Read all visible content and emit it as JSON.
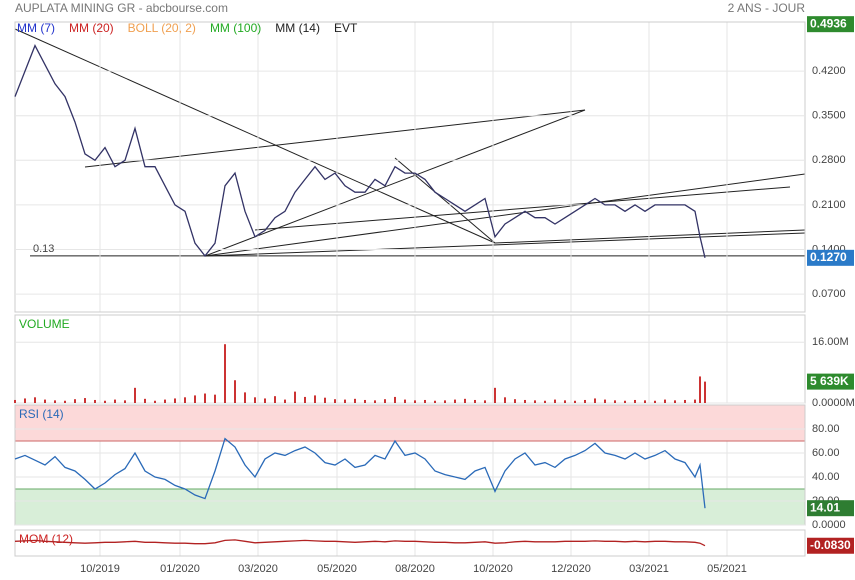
{
  "chart_data": {
    "title": "AUPLATA MINING GR - abcbourse.com",
    "subtitle": "2 ANS - JOUR",
    "xlim": [
      0,
      790
    ],
    "xticks": [
      {
        "value": 85,
        "label": "10/2019"
      },
      {
        "value": 165,
        "label": "01/2020"
      },
      {
        "value": 243,
        "label": "03/2020"
      },
      {
        "value": 322,
        "label": "05/2020"
      },
      {
        "value": 400,
        "label": "08/2020"
      },
      {
        "value": 478,
        "label": "10/2020"
      },
      {
        "value": 556,
        "label": "12/2020"
      },
      {
        "value": 634,
        "label": "03/2021"
      },
      {
        "value": 712,
        "label": "05/2021"
      }
    ],
    "x": [
      0,
      10,
      20,
      30,
      40,
      50,
      60,
      70,
      80,
      90,
      100,
      110,
      120,
      130,
      140,
      150,
      160,
      170,
      180,
      190,
      200,
      210,
      220,
      230,
      240,
      250,
      260,
      270,
      280,
      290,
      300,
      310,
      320,
      330,
      340,
      350,
      360,
      370,
      380,
      390,
      400,
      410,
      420,
      430,
      440,
      450,
      460,
      470,
      480,
      490,
      500,
      510,
      520,
      530,
      540,
      550,
      560,
      570,
      580,
      590,
      600,
      610,
      620,
      630,
      640,
      650,
      660,
      670,
      680,
      685,
      690
    ],
    "panels": [
      {
        "type": "line",
        "legend": [
          {
            "name": "MM (7)",
            "color": "#2233cc"
          },
          {
            "name": "MM (20)",
            "color": "#cc2222"
          },
          {
            "name": "BOLL (20, 2)",
            "color": "#f0a050"
          },
          {
            "name": "MM (100)",
            "color": "#22aa22"
          },
          {
            "name": "MM (14)",
            "color": "#222222"
          },
          {
            "name": "EVT",
            "color": "#222222"
          }
        ],
        "color": "#333366",
        "ylim": [
          0.042,
          0.497
        ],
        "yticks": [
          {
            "value": 0.42,
            "label": "0.4200"
          },
          {
            "value": 0.35,
            "label": "0.3500"
          },
          {
            "value": 0.28,
            "label": "0.2800"
          },
          {
            "value": 0.21,
            "label": "0.2100"
          },
          {
            "value": 0.14,
            "label": "0.1400"
          },
          {
            "value": 0.07,
            "label": "0.0700"
          }
        ],
        "values": [
          0.38,
          0.42,
          0.46,
          0.43,
          0.4,
          0.38,
          0.34,
          0.29,
          0.28,
          0.3,
          0.27,
          0.28,
          0.33,
          0.27,
          0.27,
          0.24,
          0.21,
          0.2,
          0.15,
          0.13,
          0.15,
          0.24,
          0.26,
          0.2,
          0.16,
          0.17,
          0.19,
          0.2,
          0.23,
          0.25,
          0.27,
          0.25,
          0.26,
          0.24,
          0.23,
          0.23,
          0.25,
          0.24,
          0.27,
          0.26,
          0.26,
          0.25,
          0.23,
          0.22,
          0.21,
          0.2,
          0.21,
          0.22,
          0.16,
          0.18,
          0.19,
          0.2,
          0.19,
          0.19,
          0.18,
          0.19,
          0.2,
          0.21,
          0.22,
          0.21,
          0.21,
          0.2,
          0.21,
          0.2,
          0.21,
          0.21,
          0.21,
          0.21,
          0.2,
          0.16,
          0.127
        ],
        "high": {
          "value": 0.4936,
          "label": "0.4936",
          "color": "#2e8b2e"
        },
        "current": {
          "value": 0.127,
          "label": "0.1270",
          "color": "#2a7ac8"
        },
        "annotation": {
          "value": 0.13,
          "label": "0.13"
        }
      },
      {
        "type": "bar",
        "title": "VOLUME",
        "title_color": "#22aa22",
        "color": "#cc3333",
        "ylim": [
          0,
          23200000
        ],
        "yticks": [
          {
            "value": 16000000,
            "label": "16.00M"
          },
          {
            "value": 0,
            "label": "0.0000M"
          }
        ],
        "values": [
          800000,
          1200000,
          1500000,
          900000,
          700000,
          600000,
          1000000,
          1300000,
          800000,
          600000,
          900000,
          700000,
          4000000,
          1100000,
          600000,
          900000,
          1200000,
          1500000,
          2000000,
          2500000,
          2200000,
          15500000,
          6000000,
          2800000,
          1500000,
          1200000,
          1800000,
          900000,
          3000000,
          1600000,
          2000000,
          1400000,
          1000000,
          900000,
          1100000,
          800000,
          700000,
          1000000,
          1600000,
          900000,
          700000,
          800000,
          600000,
          700000,
          900000,
          1100000,
          800000,
          700000,
          4000000,
          1500000,
          1000000,
          800000,
          700000,
          600000,
          900000,
          700000,
          600000,
          800000,
          1200000,
          900000,
          700000,
          600000,
          800000,
          700000,
          600000,
          900000,
          700000,
          800000,
          900000,
          7000000,
          5639000
        ],
        "current": {
          "value": 5639000,
          "label": "5 639K",
          "color": "#2e8b2e"
        }
      },
      {
        "type": "line",
        "title": "RSI (14)",
        "title_color": "#2a6ab8",
        "color": "#2a6ab8",
        "ylim": [
          0,
          100
        ],
        "levels": [
          70,
          30
        ],
        "yticks": [
          {
            "value": 80,
            "label": "80.00"
          },
          {
            "value": 60,
            "label": "60.00"
          },
          {
            "value": 40,
            "label": "40.00"
          },
          {
            "value": 20,
            "label": "20.00"
          },
          {
            "value": 0,
            "label": "0.0000"
          }
        ],
        "values": [
          55,
          58,
          54,
          50,
          57,
          48,
          45,
          38,
          30,
          35,
          42,
          47,
          60,
          45,
          40,
          38,
          33,
          30,
          25,
          22,
          45,
          72,
          65,
          50,
          40,
          55,
          60,
          58,
          62,
          65,
          60,
          52,
          50,
          55,
          48,
          50,
          58,
          55,
          70,
          58,
          60,
          55,
          45,
          42,
          40,
          38,
          45,
          48,
          28,
          45,
          55,
          60,
          50,
          52,
          48,
          55,
          58,
          62,
          68,
          60,
          58,
          55,
          60,
          55,
          58,
          62,
          55,
          52,
          40,
          50,
          14.01
        ],
        "current": {
          "value": 14.01,
          "label": "14.01",
          "color": "#2e7d32"
        }
      },
      {
        "type": "line",
        "title": "MOM (12)",
        "title_color": "#cc2222",
        "color": "#b22222",
        "ylim": [
          -0.3,
          0.25
        ],
        "values": [
          0.01,
          0.02,
          0.03,
          0.01,
          0,
          -0.01,
          -0.02,
          -0.03,
          -0.02,
          -0.01,
          -0.01,
          0,
          0.01,
          -0.01,
          -0.01,
          -0.02,
          -0.03,
          -0.03,
          -0.04,
          -0.04,
          -0.02,
          0.03,
          0.04,
          0.01,
          -0.02,
          -0.01,
          0,
          0.01,
          0.02,
          0.03,
          0.02,
          0.01,
          0.01,
          0,
          -0.01,
          0,
          0.01,
          0,
          0.02,
          0.01,
          0.01,
          0,
          -0.01,
          -0.01,
          -0.02,
          -0.02,
          -0.01,
          0,
          -0.03,
          -0.02,
          0,
          0.01,
          0,
          0,
          0,
          0.01,
          0.01,
          0.01,
          0.02,
          0.01,
          0.01,
          0,
          0.01,
          0,
          0.01,
          0.01,
          0,
          0,
          -0.01,
          -0.03,
          -0.083
        ],
        "current": {
          "value": -0.083,
          "label": "-0.0830",
          "color": "#b22222"
        }
      }
    ]
  }
}
